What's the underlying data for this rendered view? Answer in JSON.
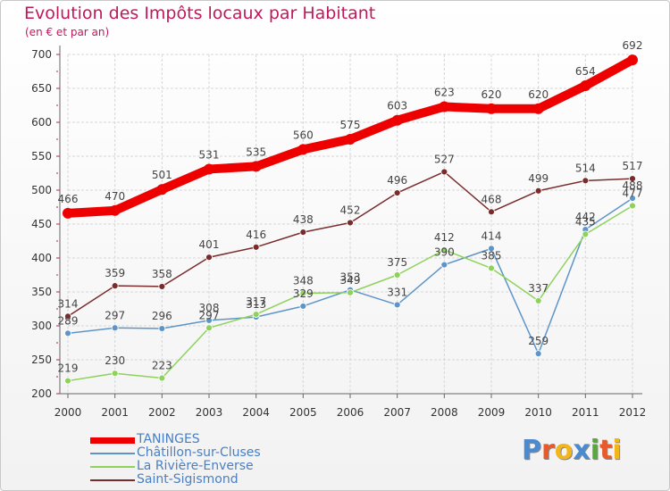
{
  "header": {
    "title": "Evolution des Impôts locaux par Habitant",
    "subtitle": "(en € et par an)"
  },
  "chart_data": {
    "type": "line",
    "title": "Evolution des Impôts locaux par Habitant",
    "subtitle": "(en € et par an)",
    "xlabel": "",
    "ylabel": "",
    "ylim": [
      200,
      700
    ],
    "yticks": [
      200,
      250,
      300,
      350,
      400,
      450,
      500,
      550,
      600,
      650,
      700
    ],
    "grid": true,
    "legend_position": "bottom-left",
    "categories": [
      "2000",
      "2001",
      "2002",
      "2003",
      "2004",
      "2005",
      "2006",
      "2007",
      "2008",
      "2009",
      "2010",
      "2011",
      "2012"
    ],
    "series": [
      {
        "name": "TANINGES",
        "color": "#ee0000",
        "values": [
          466,
          470,
          501,
          531,
          535,
          560,
          575,
          603,
          623,
          620,
          620,
          654,
          692
        ]
      },
      {
        "name": "Châtillon-sur-Cluses",
        "color": "#5d95c9",
        "values": [
          289,
          297,
          296,
          308,
          313,
          329,
          353,
          331,
          390,
          414,
          259,
          442,
          488
        ]
      },
      {
        "name": "La Rivière-Enverse",
        "color": "#8ed25c",
        "values": [
          219,
          230,
          223,
          297,
          317,
          348,
          349,
          375,
          412,
          385,
          337,
          435,
          477
        ]
      },
      {
        "name": "Saint-Sigismond",
        "color": "#7a2b2b",
        "values": [
          314,
          359,
          358,
          401,
          416,
          438,
          452,
          496,
          527,
          468,
          499,
          514,
          517
        ]
      }
    ]
  },
  "logo": {
    "letters": [
      "P",
      "r",
      "o",
      "x",
      "i",
      "t",
      "i"
    ],
    "colors": [
      "#4a8ad0",
      "#e85a2a",
      "#f2b51c",
      "#4a8ad0",
      "#5aa83a",
      "#e85a2a",
      "#f2b51c"
    ]
  }
}
